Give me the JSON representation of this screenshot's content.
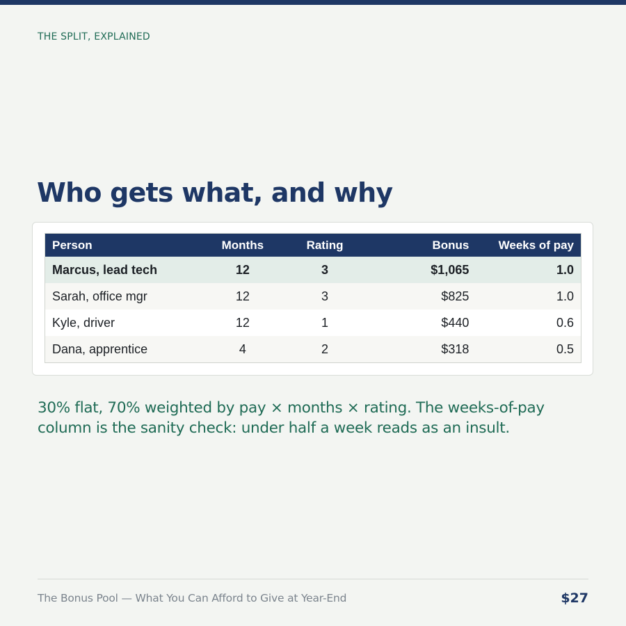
{
  "header": {
    "eyebrow": "THE SPLIT, EXPLAINED",
    "title": "Who gets what, and why"
  },
  "table": {
    "columns": [
      "Person",
      "Months",
      "Rating",
      "Bonus",
      "Weeks of pay"
    ],
    "rows": [
      {
        "person": "Marcus, lead tech",
        "months": "12",
        "rating": "3",
        "bonus": "$1,065",
        "weeks": "1.0"
      },
      {
        "person": "Sarah, office mgr",
        "months": "12",
        "rating": "3",
        "bonus": "$825",
        "weeks": "1.0"
      },
      {
        "person": "Kyle, driver",
        "months": "12",
        "rating": "1",
        "bonus": "$440",
        "weeks": "0.6"
      },
      {
        "person": "Dana, apprentice",
        "months": "4",
        "rating": "2",
        "bonus": "$318",
        "weeks": "0.5"
      }
    ]
  },
  "note": "30% flat, 70% weighted by pay × months × rating. The weeks-of-pay column is the sanity check: under half a week reads as an insult.",
  "footer": {
    "left": "The Bonus Pool — What You Can Afford to Give at Year-End",
    "right": "$27"
  },
  "colors": {
    "accent_navy": "#1e3765",
    "accent_green": "#1f6b55",
    "background": "#f3f5f2",
    "highlight_row": "#e3ede8"
  }
}
